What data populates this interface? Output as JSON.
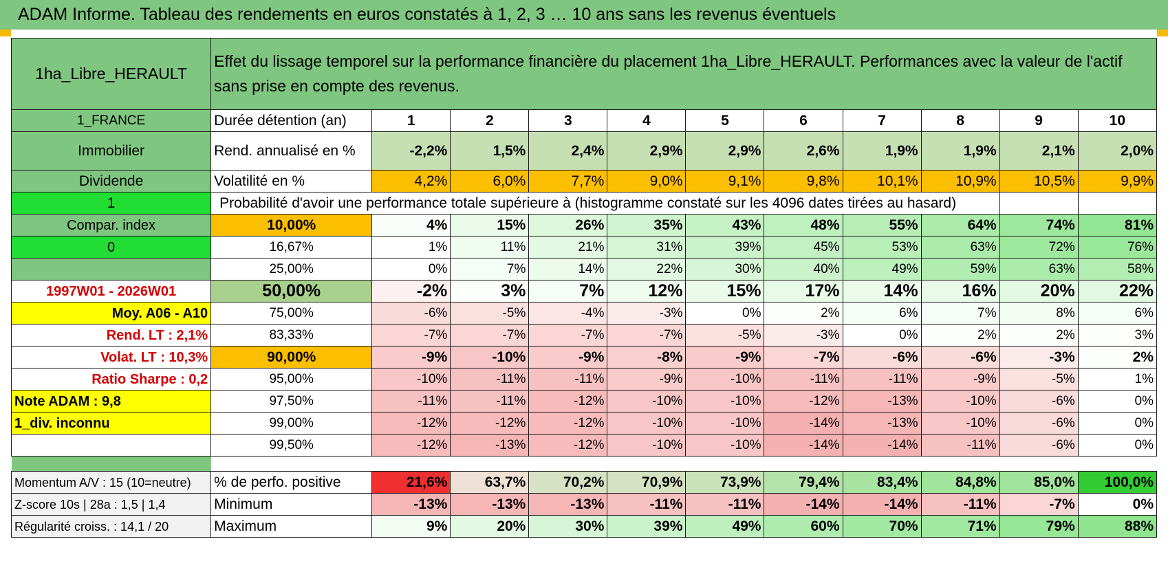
{
  "title": "ADAM Informe. Tableau des rendements en euros constatés à 1, 2, 3 … 10 ans sans les revenus éventuels",
  "header": {
    "asset": "1ha_Libre_HERAULT",
    "description": "Effet du lissage temporel sur la performance financière du placement 1ha_Libre_HERAULT. Performances avec la valeur de l'actif sans prise en compte des revenus."
  },
  "durations": {
    "side": "1_FRANCE",
    "label": "Durée détention (an)",
    "years": [
      "1",
      "2",
      "3",
      "4",
      "5",
      "6",
      "7",
      "8",
      "9",
      "10"
    ]
  },
  "rend": {
    "side": "Immobilier",
    "label": "Rend. annualisé en %",
    "values": [
      "-2,2%",
      "1,5%",
      "2,4%",
      "2,9%",
      "2,9%",
      "2,6%",
      "1,9%",
      "1,9%",
      "2,1%",
      "2,0%"
    ]
  },
  "vol": {
    "side": "Dividende",
    "label": "Volatilité en %",
    "values": [
      "4,2%",
      "6,0%",
      "7,7%",
      "9,0%",
      "9,1%",
      "9,8%",
      "10,1%",
      "10,9%",
      "10,5%",
      "9,9%"
    ]
  },
  "proba": {
    "side": "1",
    "header": "Probabilité d'avoir une performance totale supérieure à (histogramme constaté sur les 4096 dates tirées au hasard)"
  },
  "side_labels": {
    "compar": "Compar. index",
    "zero": "0",
    "blank": "",
    "period": "1997W01 - 2026W01",
    "moy": "Moy. A06 - A10",
    "rend_lt": "Rend. LT :    2,1%",
    "volat_lt": "Volat. LT :    10,3%",
    "sharpe": "Ratio Sharpe :     0,2",
    "note": "Note ADAM : 9,8",
    "div": "1_div. inconnu",
    "last": ""
  },
  "percentiles": [
    {
      "pct": "10,00%",
      "values": [
        "4%",
        "15%",
        "26%",
        "35%",
        "43%",
        "48%",
        "55%",
        "64%",
        "74%",
        "81%"
      ]
    },
    {
      "pct": "16,67%",
      "values": [
        "1%",
        "11%",
        "21%",
        "31%",
        "39%",
        "45%",
        "53%",
        "63%",
        "72%",
        "76%"
      ]
    },
    {
      "pct": "25,00%",
      "values": [
        "0%",
        "7%",
        "14%",
        "22%",
        "30%",
        "40%",
        "49%",
        "59%",
        "63%",
        "58%"
      ]
    },
    {
      "pct": "50,00%",
      "values": [
        "-2%",
        "3%",
        "7%",
        "12%",
        "15%",
        "17%",
        "14%",
        "16%",
        "20%",
        "22%"
      ]
    },
    {
      "pct": "75,00%",
      "values": [
        "-6%",
        "-5%",
        "-4%",
        "-3%",
        "0%",
        "2%",
        "6%",
        "7%",
        "8%",
        "6%"
      ]
    },
    {
      "pct": "83,33%",
      "values": [
        "-7%",
        "-7%",
        "-7%",
        "-7%",
        "-5%",
        "-3%",
        "0%",
        "2%",
        "2%",
        "3%"
      ]
    },
    {
      "pct": "90,00%",
      "values": [
        "-9%",
        "-10%",
        "-9%",
        "-8%",
        "-9%",
        "-7%",
        "-6%",
        "-6%",
        "-3%",
        "2%"
      ]
    },
    {
      "pct": "95,00%",
      "values": [
        "-10%",
        "-11%",
        "-11%",
        "-9%",
        "-10%",
        "-11%",
        "-11%",
        "-9%",
        "-5%",
        "1%"
      ]
    },
    {
      "pct": "97,50%",
      "values": [
        "-11%",
        "-11%",
        "-12%",
        "-10%",
        "-10%",
        "-12%",
        "-13%",
        "-10%",
        "-6%",
        "0%"
      ]
    },
    {
      "pct": "99,00%",
      "values": [
        "-12%",
        "-12%",
        "-12%",
        "-10%",
        "-10%",
        "-14%",
        "-13%",
        "-10%",
        "-6%",
        "0%"
      ]
    },
    {
      "pct": "99,50%",
      "values": [
        "-12%",
        "-13%",
        "-12%",
        "-10%",
        "-10%",
        "-14%",
        "-14%",
        "-11%",
        "-6%",
        "0%"
      ]
    }
  ],
  "summary": [
    {
      "side": "Momentum A/V : 15 (10=neutre)",
      "label": "% de perfo. positive",
      "values": [
        "21,6%",
        "63,7%",
        "70,2%",
        "70,9%",
        "73,9%",
        "79,4%",
        "83,4%",
        "84,8%",
        "85,0%",
        "100,0%"
      ]
    },
    {
      "side": "Z-score 10s | 28a : 1,5 | 1,4",
      "label": "Minimum",
      "values": [
        "-13%",
        "-13%",
        "-13%",
        "-11%",
        "-11%",
        "-14%",
        "-14%",
        "-11%",
        "-7%",
        "0%"
      ]
    },
    {
      "side": "Régularité croiss. : 14,1 / 20",
      "label": "Maximum",
      "values": [
        "9%",
        "20%",
        "30%",
        "39%",
        "49%",
        "60%",
        "70%",
        "71%",
        "79%",
        "88%"
      ]
    }
  ],
  "colors": {
    "header_green": "#7fc680",
    "bright_green": "#22dd33",
    "yellow": "#ffff00",
    "orange": "#fbbf00",
    "median_green": "#a9d18e",
    "red_text": "#d40000"
  }
}
